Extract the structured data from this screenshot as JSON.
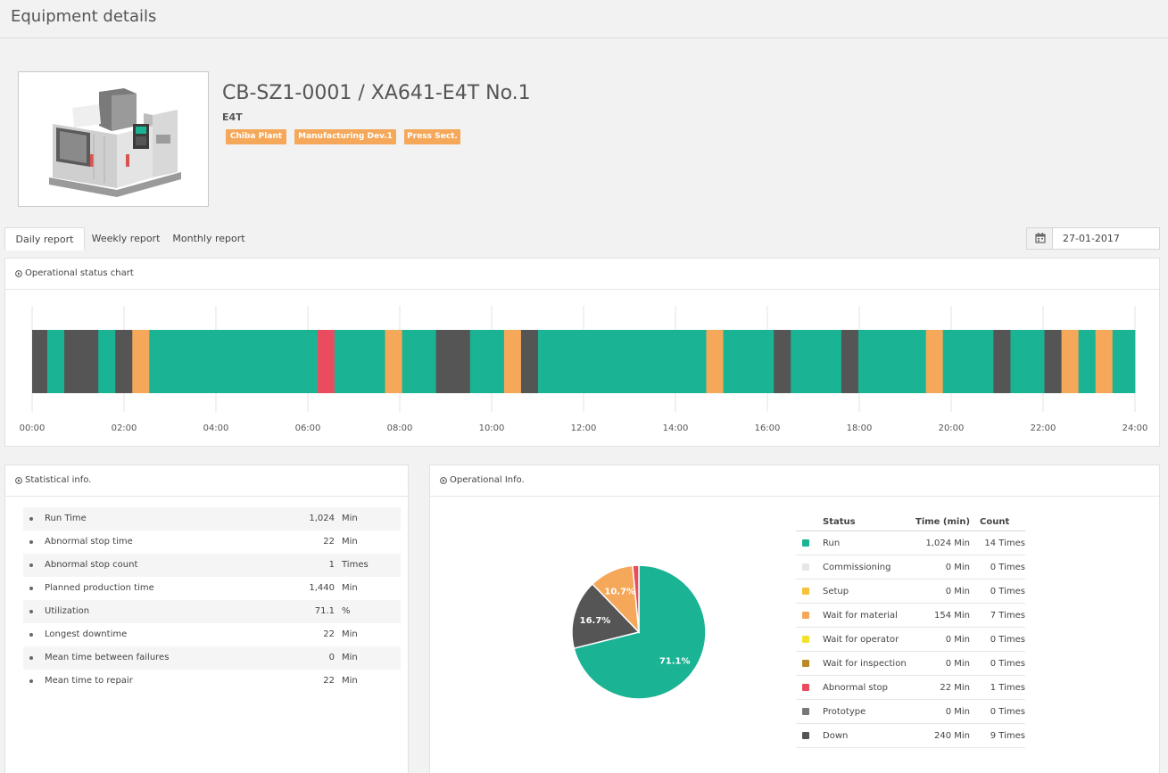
{
  "page": {
    "title": "Equipment details"
  },
  "equipment": {
    "name": "CB-SZ1-0001 / XA641-E4T No.1",
    "model": "E4T",
    "image_icon": "machining-center-icon",
    "tags": [
      "Chiba Plant",
      "Manufacturing Dev.1",
      "Press Sect."
    ]
  },
  "report_tabs": [
    {
      "label": "Daily report",
      "active": true
    },
    {
      "label": "Weekly report",
      "active": false
    },
    {
      "label": "Monthly report",
      "active": false
    }
  ],
  "date_picker": {
    "icon": "calendar-icon",
    "value": "27-01-2017"
  },
  "status_colors": {
    "run": "#1ab394",
    "commissioning": "#e6e6e6",
    "setup": "#f8c13a",
    "wait_material": "#f5a85a",
    "wait_operator": "#f2e22c",
    "wait_inspection": "#b88a26",
    "abnormal_stop": "#ea4c5f",
    "prototype": "#777777",
    "down": "#555555"
  },
  "status_chart": {
    "title": "Operational status chart",
    "icon": "circle-arrow-icon",
    "x_ticks": [
      "00:00",
      "02:00",
      "04:00",
      "06:00",
      "08:00",
      "10:00",
      "12:00",
      "14:00",
      "16:00",
      "18:00",
      "20:00",
      "22:00",
      "24:00"
    ],
    "range_hours": [
      0,
      24
    ]
  },
  "chart_data": [
    {
      "type": "bar",
      "chart": "timeline",
      "title": "Operational status chart",
      "x_unit": "hours",
      "xlim": [
        0,
        24
      ],
      "x_ticks": [
        "00:00",
        "02:00",
        "04:00",
        "06:00",
        "08:00",
        "10:00",
        "12:00",
        "14:00",
        "16:00",
        "18:00",
        "20:00",
        "22:00",
        "24:00"
      ],
      "grid": true,
      "segments": [
        {
          "start": 0.0,
          "end": 0.33,
          "status": "Down"
        },
        {
          "start": 0.33,
          "end": 0.7,
          "status": "Run"
        },
        {
          "start": 0.7,
          "end": 1.44,
          "status": "Down"
        },
        {
          "start": 1.44,
          "end": 1.81,
          "status": "Run"
        },
        {
          "start": 1.81,
          "end": 2.18,
          "status": "Down"
        },
        {
          "start": 2.18,
          "end": 2.55,
          "status": "Wait for material"
        },
        {
          "start": 2.55,
          "end": 6.21,
          "status": "Run"
        },
        {
          "start": 6.21,
          "end": 6.58,
          "status": "Abnormal stop"
        },
        {
          "start": 6.58,
          "end": 7.68,
          "status": "Run"
        },
        {
          "start": 7.68,
          "end": 8.05,
          "status": "Wait for material"
        },
        {
          "start": 8.05,
          "end": 8.79,
          "status": "Run"
        },
        {
          "start": 8.79,
          "end": 9.53,
          "status": "Down"
        },
        {
          "start": 9.53,
          "end": 10.27,
          "status": "Run"
        },
        {
          "start": 10.27,
          "end": 10.64,
          "status": "Wait for material"
        },
        {
          "start": 10.64,
          "end": 11.01,
          "status": "Down"
        },
        {
          "start": 11.01,
          "end": 14.67,
          "status": "Run"
        },
        {
          "start": 14.67,
          "end": 15.04,
          "status": "Wait for material"
        },
        {
          "start": 15.04,
          "end": 16.14,
          "status": "Run"
        },
        {
          "start": 16.14,
          "end": 16.51,
          "status": "Down"
        },
        {
          "start": 16.51,
          "end": 17.61,
          "status": "Run"
        },
        {
          "start": 17.61,
          "end": 17.98,
          "status": "Down"
        },
        {
          "start": 17.98,
          "end": 19.45,
          "status": "Run"
        },
        {
          "start": 19.45,
          "end": 19.82,
          "status": "Wait for material"
        },
        {
          "start": 19.82,
          "end": 20.92,
          "status": "Run"
        },
        {
          "start": 20.92,
          "end": 21.29,
          "status": "Down"
        },
        {
          "start": 21.29,
          "end": 22.03,
          "status": "Run"
        },
        {
          "start": 22.03,
          "end": 22.4,
          "status": "Down"
        },
        {
          "start": 22.4,
          "end": 22.77,
          "status": "Wait for material"
        },
        {
          "start": 22.77,
          "end": 23.14,
          "status": "Run"
        },
        {
          "start": 23.14,
          "end": 23.51,
          "status": "Wait for material"
        },
        {
          "start": 23.51,
          "end": 24.0,
          "status": "Run"
        }
      ]
    },
    {
      "type": "pie",
      "title": "",
      "slices": [
        {
          "label": "Run",
          "value": 71.1,
          "data_label": "71.1%",
          "color": "#1ab394"
        },
        {
          "label": "Down",
          "value": 16.7,
          "data_label": "16.7%",
          "color": "#555555"
        },
        {
          "label": "Wait for material",
          "value": 10.7,
          "data_label": "10.7%",
          "color": "#f5a85a"
        },
        {
          "label": "Abnormal stop",
          "value": 1.5,
          "data_label": "",
          "color": "#ea4c5f"
        }
      ]
    }
  ],
  "statistics": {
    "title": "Statistical info.",
    "icon": "circle-arrow-icon",
    "rows": [
      {
        "label": "Run Time",
        "value": "1,024",
        "unit": "Min"
      },
      {
        "label": "Abnormal stop time",
        "value": "22",
        "unit": "Min"
      },
      {
        "label": "Abnormal stop count",
        "value": "1",
        "unit": "Times"
      },
      {
        "label": "Planned production time",
        "value": "1,440",
        "unit": "Min"
      },
      {
        "label": "Utilization",
        "value": "71.1",
        "unit": "%"
      },
      {
        "label": "Longest downtime",
        "value": "22",
        "unit": "Min"
      },
      {
        "label": "Mean time between failures",
        "value": "0",
        "unit": "Min"
      },
      {
        "label": "Mean time to repair",
        "value": "22",
        "unit": "Min"
      }
    ]
  },
  "operational": {
    "title": "Operational Info.",
    "icon": "circle-arrow-icon",
    "headers": {
      "status": "Status",
      "time": "Time (min)",
      "count": "Count"
    },
    "rows": [
      {
        "status": "Run",
        "time": "1,024 Min",
        "count": "14 Times",
        "color": "#1ab394"
      },
      {
        "status": "Commissioning",
        "time": "0 Min",
        "count": "0 Times",
        "color": "#e6e6e6"
      },
      {
        "status": "Setup",
        "time": "0 Min",
        "count": "0 Times",
        "color": "#f8c13a"
      },
      {
        "status": "Wait for material",
        "time": "154 Min",
        "count": "7 Times",
        "color": "#f5a85a"
      },
      {
        "status": "Wait for operator",
        "time": "0 Min",
        "count": "0 Times",
        "color": "#f2e22c"
      },
      {
        "status": "Wait for inspection",
        "time": "0 Min",
        "count": "0 Times",
        "color": "#b88a26"
      },
      {
        "status": "Abnormal stop",
        "time": "22 Min",
        "count": "1 Times",
        "color": "#ea4c5f"
      },
      {
        "status": "Prototype",
        "time": "0 Min",
        "count": "0 Times",
        "color": "#777777"
      },
      {
        "status": "Down",
        "time": "240 Min",
        "count": "9 Times",
        "color": "#555555"
      }
    ]
  }
}
